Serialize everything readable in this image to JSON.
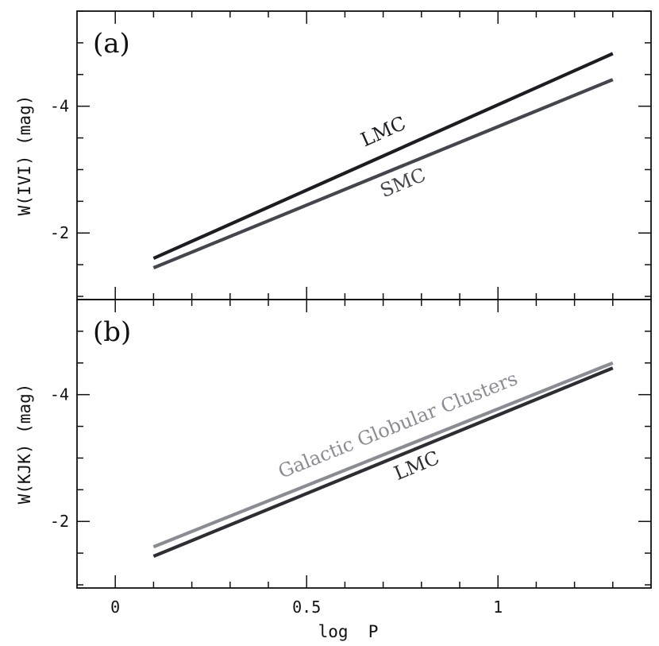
{
  "chart_data": [
    {
      "panel": "(a)",
      "type": "line",
      "xlabel": "",
      "ylabel": "W(IVI)  (mag)",
      "xlim": [
        -0.1,
        1.4
      ],
      "ylim": [
        -0.95,
        -5.5
      ],
      "yticks": [
        "-4",
        "-2"
      ],
      "ytick_values": [
        -4,
        -2
      ],
      "series": [
        {
          "name": "LMC",
          "color": "#1c1c22",
          "x": [
            0.1,
            1.3
          ],
          "y": [
            -1.6,
            -4.83
          ]
        },
        {
          "name": "SMC",
          "color": "#44464d",
          "x": [
            0.1,
            1.3
          ],
          "y": [
            -1.45,
            -4.42
          ]
        }
      ]
    },
    {
      "panel": "(b)",
      "type": "line",
      "xlabel": "log  P",
      "ylabel": "W(KJK)  (mag)",
      "xlim": [
        -0.1,
        1.4
      ],
      "ylim": [
        -0.95,
        -5.5
      ],
      "xticks": [
        "0",
        "0.5",
        "1"
      ],
      "xtick_values": [
        0,
        0.5,
        1
      ],
      "yticks": [
        "-4",
        "-2"
      ],
      "ytick_values": [
        -4,
        -2
      ],
      "series": [
        {
          "name": "Galactic Globular Clusters",
          "color": "#8a8c94",
          "x": [
            0.1,
            1.3
          ],
          "y": [
            -1.6,
            -4.5
          ]
        },
        {
          "name": "LMC",
          "color": "#2c2e34",
          "x": [
            0.1,
            1.3
          ],
          "y": [
            -1.45,
            -4.42
          ]
        }
      ]
    }
  ]
}
